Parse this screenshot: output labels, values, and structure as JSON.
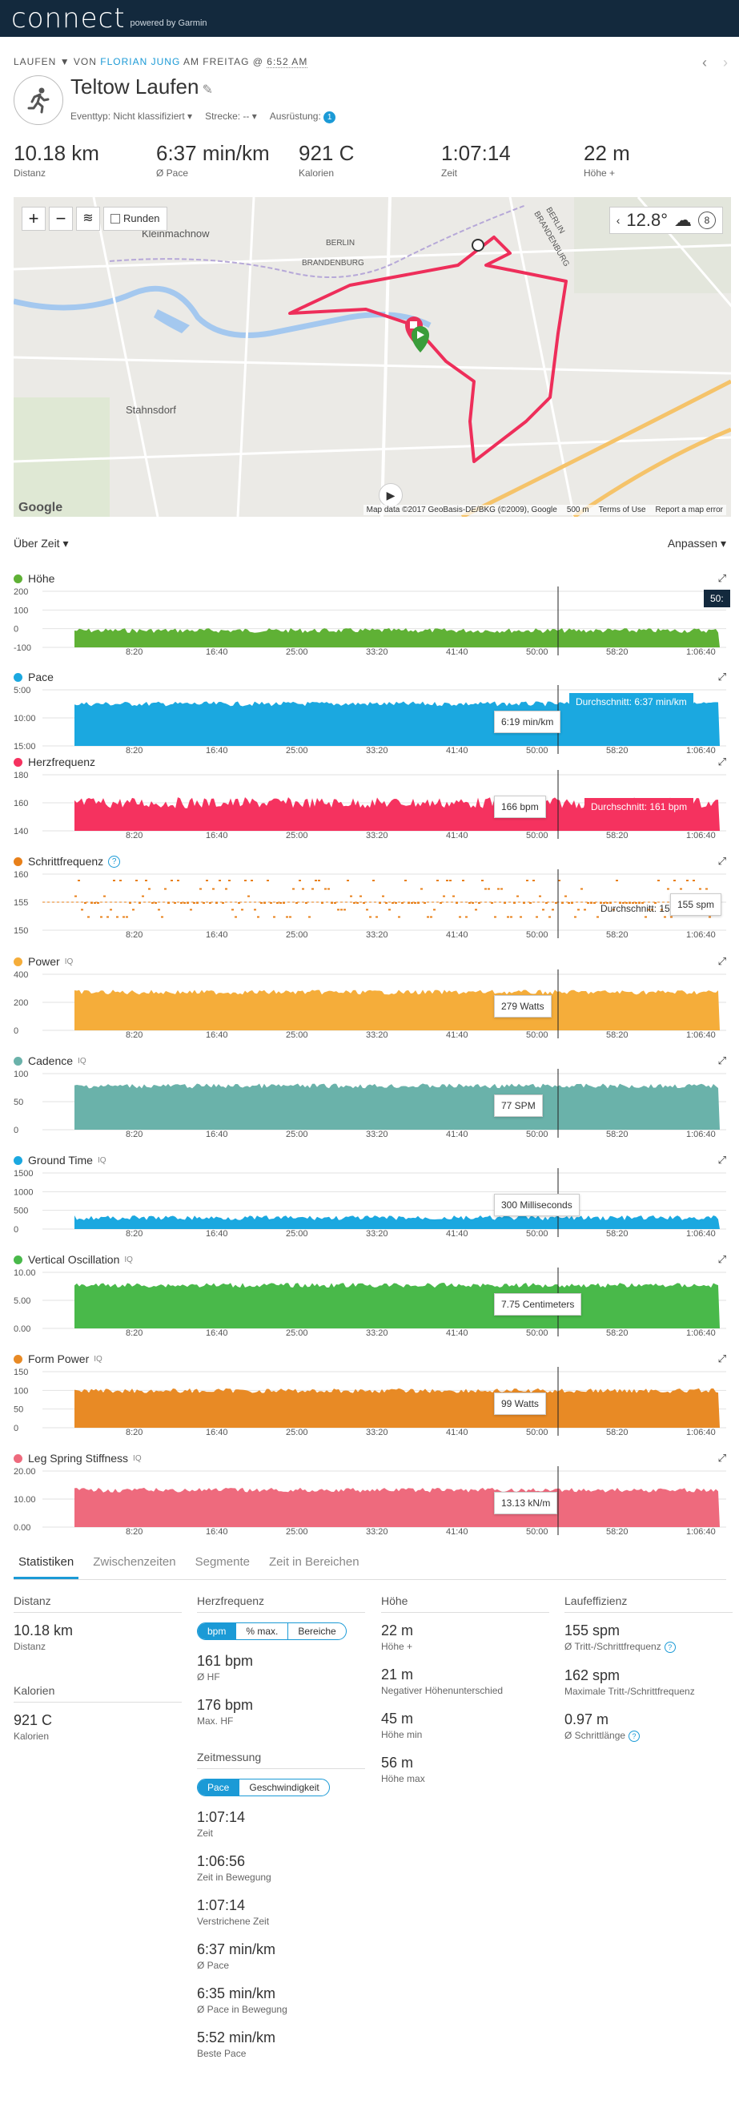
{
  "brand": {
    "logo": "connect",
    "sub": "powered by Garmin"
  },
  "header": {
    "activity_type": "LAUFEN",
    "by": "VON",
    "author": "FLORIAN JUNG",
    "day": "AM FREITAG @",
    "time": "6:52 AM",
    "title": "Teltow Laufen",
    "event_type": "Eventtyp: Nicht klassifiziert",
    "course": "Strecke: --",
    "equipment": "Ausrüstung:",
    "equipment_count": "1"
  },
  "summary": [
    {
      "value": "10.18 km",
      "label": "Distanz"
    },
    {
      "value": "6:37 min/km",
      "label": "Ø Pace"
    },
    {
      "value": "921 C",
      "label": "Kalorien"
    },
    {
      "value": "1:07:14",
      "label": "Zeit"
    },
    {
      "value": "22 m",
      "label": "Höhe +"
    }
  ],
  "map": {
    "laps_label": "Runden",
    "temperature": "12.8°",
    "wind": "8",
    "google": "Google",
    "attribution": "Map data ©2017 GeoBasis-DE/BKG (©2009), Google",
    "scale": "500 m",
    "terms": "Terms of Use",
    "report": "Report a map error",
    "places": [
      "Kleinmachnow",
      "BERLIN",
      "BRANDENBURG",
      "Stahnsdorf",
      "BRANDENBURG",
      "BERLIN"
    ],
    "route_color": "#ee2e5a"
  },
  "controls": {
    "range": "Über Zeit ▾",
    "adjust": "Anpassen ▾"
  },
  "x_ticks": [
    "8:20",
    "16:40",
    "25:00",
    "33:20",
    "41:40",
    "50:00",
    "58:20",
    "1:06:40"
  ],
  "charts": [
    {
      "key": "hoehe",
      "title": "Höhe",
      "color": "#5fb135",
      "iq": false,
      "help": false,
      "y_ticks": [
        "200",
        "100",
        "0",
        "-100"
      ],
      "level": 0.3,
      "tip": "",
      "avg": "",
      "hover": "50:"
    },
    {
      "key": "pace",
      "title": "Pace",
      "color": "#1ba8e0",
      "iq": false,
      "help": false,
      "y_ticks": [
        "5:00",
        "10:00",
        "15:00"
      ],
      "level": 0.75,
      "tip": "6:19 min/km",
      "avg": "Durchschnitt: 6:37 min/km"
    },
    {
      "key": "hf",
      "title": "Herzfrequenz",
      "color": "#f5325f",
      "iq": false,
      "help": false,
      "y_ticks": [
        "180",
        "160",
        "140"
      ],
      "level": 0.5,
      "tip": "166 bpm",
      "avg": "Durchschnitt: 161 bpm"
    },
    {
      "key": "cadence",
      "title": "Schrittfrequenz",
      "color": "#e8801a",
      "iq": false,
      "help": true,
      "y_ticks": [
        "160",
        "155",
        "150"
      ],
      "level": 0.5,
      "tip": "155 spm",
      "avg": "Durchschnitt: 15"
    },
    {
      "key": "power",
      "title": "Power",
      "color": "#f5ad3a",
      "iq": true,
      "help": false,
      "y_ticks": [
        "400",
        "200",
        "0"
      ],
      "level": 0.68,
      "tip": "279 Watts",
      "avg": ""
    },
    {
      "key": "cad2",
      "title": "Cadence",
      "color": "#6ab2aa",
      "iq": true,
      "help": false,
      "y_ticks": [
        "100",
        "50",
        "0"
      ],
      "level": 0.78,
      "tip": "77 SPM",
      "avg": ""
    },
    {
      "key": "gct",
      "title": "Ground Time",
      "color": "#1ba8e0",
      "iq": true,
      "help": false,
      "y_ticks": [
        "1500",
        "1000",
        "500",
        "0"
      ],
      "level": 0.2,
      "tip": "300 Milliseconds",
      "avg": ""
    },
    {
      "key": "vo",
      "title": "Vertical Oscillation",
      "color": "#49b94a",
      "iq": true,
      "help": false,
      "y_ticks": [
        "10.00",
        "5.00",
        "0.00"
      ],
      "level": 0.77,
      "tip": "7.75 Centimeters",
      "avg": ""
    },
    {
      "key": "fp",
      "title": "Form Power",
      "color": "#e88a25",
      "iq": true,
      "help": false,
      "y_ticks": [
        "150",
        "100",
        "50",
        "0"
      ],
      "level": 0.66,
      "tip": "99 Watts",
      "avg": ""
    },
    {
      "key": "lss",
      "title": "Leg Spring Stiffness",
      "color": "#ee6a7d",
      "iq": true,
      "help": false,
      "y_ticks": [
        "20.00",
        "10.00",
        "0.00"
      ],
      "level": 0.66,
      "tip": "13.13 kN/m",
      "avg": ""
    }
  ],
  "iq_label": "IQ",
  "tabs": [
    "Statistiken",
    "Zwischenzeiten",
    "Segmente",
    "Zeit in Bereichen"
  ],
  "stats": {
    "distance": {
      "head": "Distanz",
      "value": "10.18 km",
      "label": "Distanz"
    },
    "calories": {
      "head": "Kalorien",
      "value": "921 C",
      "label": "Kalorien"
    },
    "hr": {
      "head": "Herzfrequenz",
      "seg": [
        "bpm",
        "% max.",
        "Bereiche"
      ],
      "items": [
        {
          "value": "161 bpm",
          "label": "Ø HF"
        },
        {
          "value": "176 bpm",
          "label": "Max. HF"
        }
      ]
    },
    "timing": {
      "head": "Zeitmessung",
      "seg": [
        "Pace",
        "Geschwindigkeit"
      ],
      "items": [
        {
          "value": "1:07:14",
          "label": "Zeit"
        },
        {
          "value": "1:06:56",
          "label": "Zeit in Bewegung"
        },
        {
          "value": "1:07:14",
          "label": "Verstrichene Zeit"
        },
        {
          "value": "6:37 min/km",
          "label": "Ø Pace"
        },
        {
          "value": "6:35 min/km",
          "label": "Ø Pace in Bewegung"
        },
        {
          "value": "5:52 min/km",
          "label": "Beste Pace"
        }
      ]
    },
    "elevation": {
      "head": "Höhe",
      "items": [
        {
          "value": "22 m",
          "label": "Höhe +"
        },
        {
          "value": "21 m",
          "label": "Negativer Höhenunterschied"
        },
        {
          "value": "45 m",
          "label": "Höhe min"
        },
        {
          "value": "56 m",
          "label": "Höhe max"
        }
      ]
    },
    "efficiency": {
      "head": "Laufeffizienz",
      "items": [
        {
          "value": "155 spm",
          "label": "Ø Tritt-/Schrittfrequenz",
          "help": true
        },
        {
          "value": "162 spm",
          "label": "Maximale Tritt-/Schrittfrequenz",
          "help": false
        },
        {
          "value": "0.97 m",
          "label": "Ø Schrittlänge",
          "help": true
        }
      ]
    }
  }
}
